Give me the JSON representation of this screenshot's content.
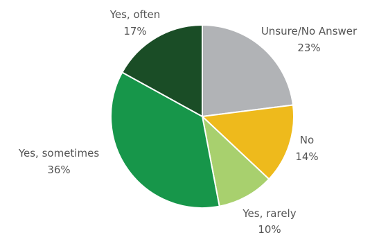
{
  "chart_data": {
    "type": "pie",
    "title": "",
    "slices": [
      {
        "name": "Unsure/No Answer",
        "value": 23,
        "label": "23%",
        "color": "#b1b3b6"
      },
      {
        "name": "No",
        "value": 14,
        "label": "14%",
        "color": "#eeba1c"
      },
      {
        "name": "Yes, rarely",
        "value": 10,
        "label": "10%",
        "color": "#a8d06e"
      },
      {
        "name": "Yes, sometimes",
        "value": 36,
        "label": "36%",
        "color": "#17964a"
      },
      {
        "name": "Yes, often",
        "value": 17,
        "label": "17%",
        "color": "#1a4d26"
      }
    ],
    "legend": "none",
    "start": "12 o'clock",
    "direction": "clockwise"
  }
}
